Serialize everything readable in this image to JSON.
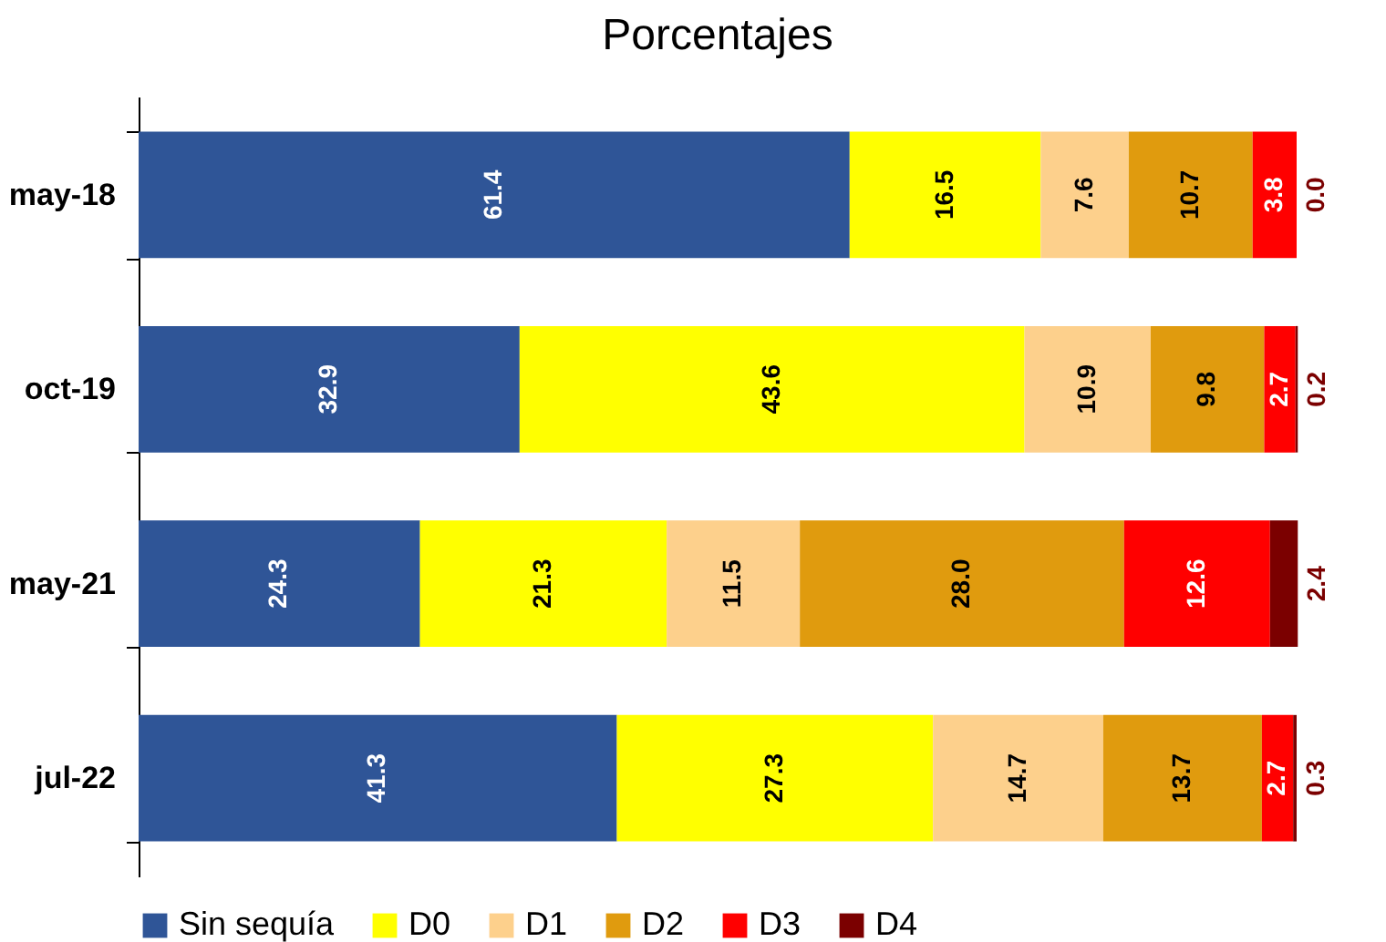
{
  "chart_data": {
    "type": "bar",
    "orientation": "horizontal",
    "stacked": true,
    "title": "Porcentajes",
    "categories": [
      "may-18",
      "oct-19",
      "may-21",
      "jul-22"
    ],
    "series": [
      {
        "name": "Sin sequía",
        "color": "#2f5597",
        "values": [
          61.4,
          32.9,
          24.3,
          41.3
        ],
        "value_labels": [
          "61.4",
          "32.9",
          "24.3",
          "41.3"
        ]
      },
      {
        "name": "D0",
        "color": "#ffff00",
        "values": [
          16.5,
          43.6,
          21.3,
          27.3
        ],
        "value_labels": [
          "16.5",
          "43.6",
          "21.3",
          "27.3"
        ]
      },
      {
        "name": "D1",
        "color": "#fdd08c",
        "values": [
          7.6,
          10.9,
          11.5,
          14.7
        ],
        "value_labels": [
          "7.6",
          "10.9",
          "11.5",
          "14.7"
        ]
      },
      {
        "name": "D2",
        "color": "#e09b0e",
        "values": [
          10.7,
          9.8,
          28.0,
          13.7
        ],
        "value_labels": [
          "10.7",
          "9.8",
          "28.0",
          "13.7"
        ]
      },
      {
        "name": "D3",
        "color": "#ff0000",
        "values": [
          3.8,
          2.7,
          12.6,
          2.7
        ],
        "value_labels": [
          "3.8",
          "2.7",
          "12.6",
          "2.7"
        ]
      },
      {
        "name": "D4",
        "color": "#7b0000",
        "values": [
          0.0,
          0.2,
          2.4,
          0.3
        ],
        "value_labels": [
          "0.0",
          "0.2",
          "2.4",
          "0.3"
        ]
      }
    ],
    "xlim": [
      0,
      100
    ],
    "legend": "bottom",
    "grid": false,
    "tick_labels": "y"
  }
}
